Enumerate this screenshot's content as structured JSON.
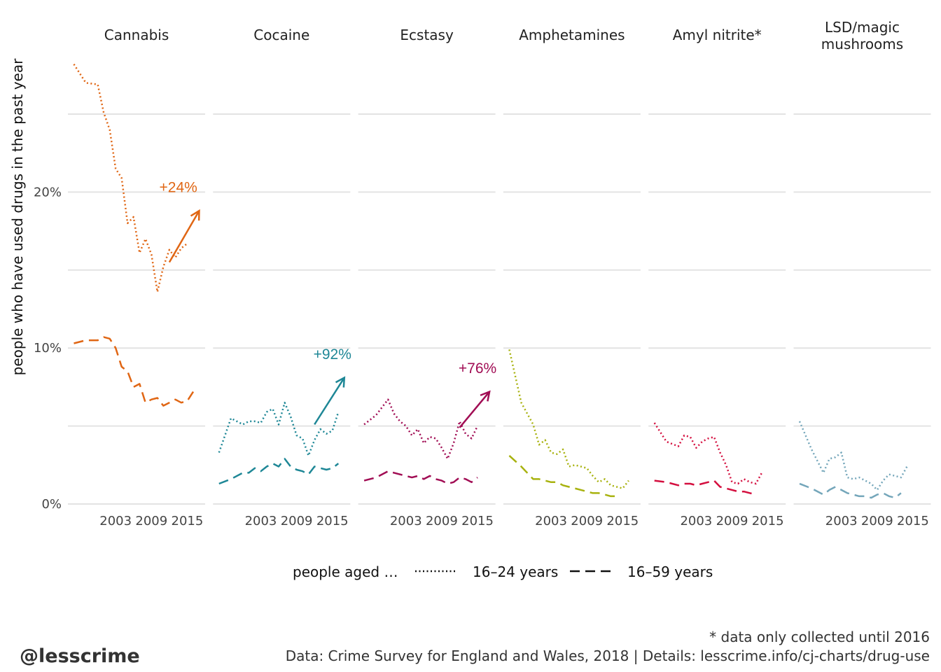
{
  "chart_data": {
    "type": "line",
    "ylabel": "people who have used drugs in the past year",
    "yticks": [
      {
        "value": 0,
        "label": "0%"
      },
      {
        "value": 10,
        "label": "10%"
      },
      {
        "value": 20,
        "label": "20%"
      }
    ],
    "ygrid": [
      0,
      5,
      10,
      15,
      20,
      25
    ],
    "ylim": [
      0,
      28.5
    ],
    "xlim": [
      1995,
      2018
    ],
    "xticks": [
      {
        "value": 2003,
        "label": "2003"
      },
      {
        "value": 2009,
        "label": "2009"
      },
      {
        "value": 2015,
        "label": "2015"
      }
    ],
    "legend": {
      "title": "people aged …",
      "items": [
        {
          "label": "16–24 years",
          "dash": "dotted"
        },
        {
          "label": "16–59 years",
          "dash": "dashed"
        }
      ]
    },
    "facets": [
      {
        "title": [
          "Cannabis"
        ],
        "color": "#e06614",
        "x": [
          1996,
          1998,
          2000,
          2001,
          2002,
          2003,
          2004,
          2005,
          2006,
          2007,
          2008,
          2009,
          2010,
          2011,
          2012,
          2013,
          2014,
          2015,
          2016,
          2017,
          2018
        ],
        "young": [
          28.2,
          27.0,
          26.9,
          25.1,
          24.0,
          21.5,
          20.9,
          18.0,
          18.4,
          16.1,
          17.0,
          16.0,
          13.6,
          15.2,
          16.3,
          15.8,
          16.4,
          16.7
        ],
        "old": [
          10.3,
          10.5,
          10.5,
          10.7,
          10.6,
          10.0,
          8.8,
          8.5,
          7.5,
          7.7,
          6.5,
          6.7,
          6.8,
          6.3,
          6.5,
          6.7,
          6.5,
          6.6,
          7.2
        ],
        "annotation": {
          "label": "+24%",
          "x1": 2012,
          "y1": 15.5,
          "x2": 2017,
          "y2": 18.8,
          "tx": 2013.5,
          "ty": 20.0
        }
      },
      {
        "title": [
          "Cocaine"
        ],
        "color": "#1e8796",
        "x": [
          1996,
          1998,
          2000,
          2001,
          2002,
          2003,
          2004,
          2005,
          2006,
          2007,
          2008,
          2009,
          2010,
          2011,
          2012,
          2013,
          2014,
          2015,
          2016,
          2017,
          2018
        ],
        "young": [
          3.3,
          5.5,
          5.1,
          5.3,
          5.3,
          5.2,
          5.9,
          6.1,
          5.1,
          6.5,
          5.6,
          4.4,
          4.2,
          3.1,
          4.1,
          4.8,
          4.5,
          4.7,
          5.9
        ],
        "old": [
          1.3,
          1.6,
          2.0,
          2.0,
          2.3,
          2.1,
          2.4,
          2.6,
          2.4,
          2.9,
          2.4,
          2.2,
          2.1,
          1.9,
          2.4,
          2.3,
          2.2,
          2.3,
          2.6
        ],
        "annotation": {
          "label": "+92%",
          "x1": 2012,
          "y1": 5.1,
          "x2": 2017,
          "y2": 8.1,
          "tx": 2015,
          "ty": 9.3
        }
      },
      {
        "title": [
          "Ecstasy"
        ],
        "color": "#a10d54",
        "x": [
          1996,
          1998,
          2000,
          2001,
          2002,
          2003,
          2004,
          2005,
          2006,
          2007,
          2008,
          2009,
          2010,
          2011,
          2012,
          2013,
          2014,
          2015,
          2016,
          2017,
          2018
        ],
        "young": [
          5.1,
          5.7,
          6.7,
          5.8,
          5.3,
          5.0,
          4.4,
          4.8,
          3.9,
          4.3,
          4.2,
          3.6,
          2.9,
          3.9,
          5.3,
          4.5,
          4.2,
          5.0
        ],
        "old": [
          1.5,
          1.7,
          2.1,
          2.0,
          1.9,
          1.8,
          1.7,
          1.8,
          1.6,
          1.8,
          1.6,
          1.5,
          1.3,
          1.4,
          1.7,
          1.6,
          1.4,
          1.7
        ],
        "annotation": {
          "label": "+76%",
          "x1": 2012,
          "y1": 4.9,
          "x2": 2017,
          "y2": 7.2,
          "tx": 2015,
          "ty": 8.4
        }
      },
      {
        "title": [
          "Amphetamines"
        ],
        "color": "#a8b20f",
        "x": [
          1996,
          1998,
          2000,
          2001,
          2002,
          2003,
          2004,
          2005,
          2006,
          2007,
          2008,
          2009,
          2010,
          2011,
          2012,
          2013,
          2014,
          2015,
          2016,
          2017,
          2018
        ],
        "young": [
          9.9,
          6.5,
          5.1,
          3.8,
          4.1,
          3.3,
          3.2,
          3.5,
          2.4,
          2.5,
          2.4,
          2.3,
          1.8,
          1.4,
          1.6,
          1.2,
          1.1,
          1.0,
          1.5
        ],
        "old": [
          3.1,
          2.4,
          1.6,
          1.6,
          1.5,
          1.4,
          1.4,
          1.2,
          1.1,
          1.0,
          0.9,
          0.8,
          0.7,
          0.7,
          0.6,
          0.5,
          0.5
        ],
        "annotation": null
      },
      {
        "title": [
          "Amyl nitrite*"
        ],
        "color": "#d40f3f",
        "x": [
          1996,
          1998,
          2000,
          2001,
          2002,
          2003,
          2004,
          2005,
          2006,
          2007,
          2008,
          2009,
          2010,
          2011,
          2012,
          2013,
          2014,
          2015,
          2016,
          2017,
          2018
        ],
        "young": [
          5.2,
          4.0,
          3.7,
          4.4,
          4.3,
          3.6,
          4.0,
          4.2,
          4.3,
          3.3,
          2.5,
          1.4,
          1.3,
          1.6,
          1.4,
          1.3,
          2.0
        ],
        "old": [
          1.5,
          1.4,
          1.2,
          1.3,
          1.3,
          1.2,
          1.3,
          1.4,
          1.5,
          1.1,
          1.0,
          0.9,
          0.8,
          0.8,
          0.7,
          0.6
        ],
        "annotation": null
      },
      {
        "title": [
          "LSD/magic",
          "mushrooms"
        ],
        "color": "#74a6ba",
        "x": [
          1996,
          1998,
          2000,
          2001,
          2002,
          2003,
          2004,
          2005,
          2006,
          2007,
          2008,
          2009,
          2010,
          2011,
          2012,
          2013,
          2014,
          2015,
          2016,
          2017,
          2018
        ],
        "young": [
          5.3,
          3.5,
          2.0,
          2.9,
          3.0,
          3.3,
          1.7,
          1.6,
          1.7,
          1.5,
          1.3,
          0.9,
          1.5,
          1.9,
          1.8,
          1.7,
          2.4
        ],
        "old": [
          1.3,
          1.0,
          0.6,
          0.9,
          1.1,
          0.9,
          0.7,
          0.6,
          0.5,
          0.5,
          0.4,
          0.6,
          0.7,
          0.5,
          0.4,
          0.7
        ],
        "annotation": null
      }
    ]
  },
  "footer": {
    "handle": "@lesscrime",
    "note": "* data only collected until 2016",
    "source": "Data: Crime Survey for England and Wales, 2018 |  Details: lesscrime.info/cj-charts/drug-use"
  }
}
